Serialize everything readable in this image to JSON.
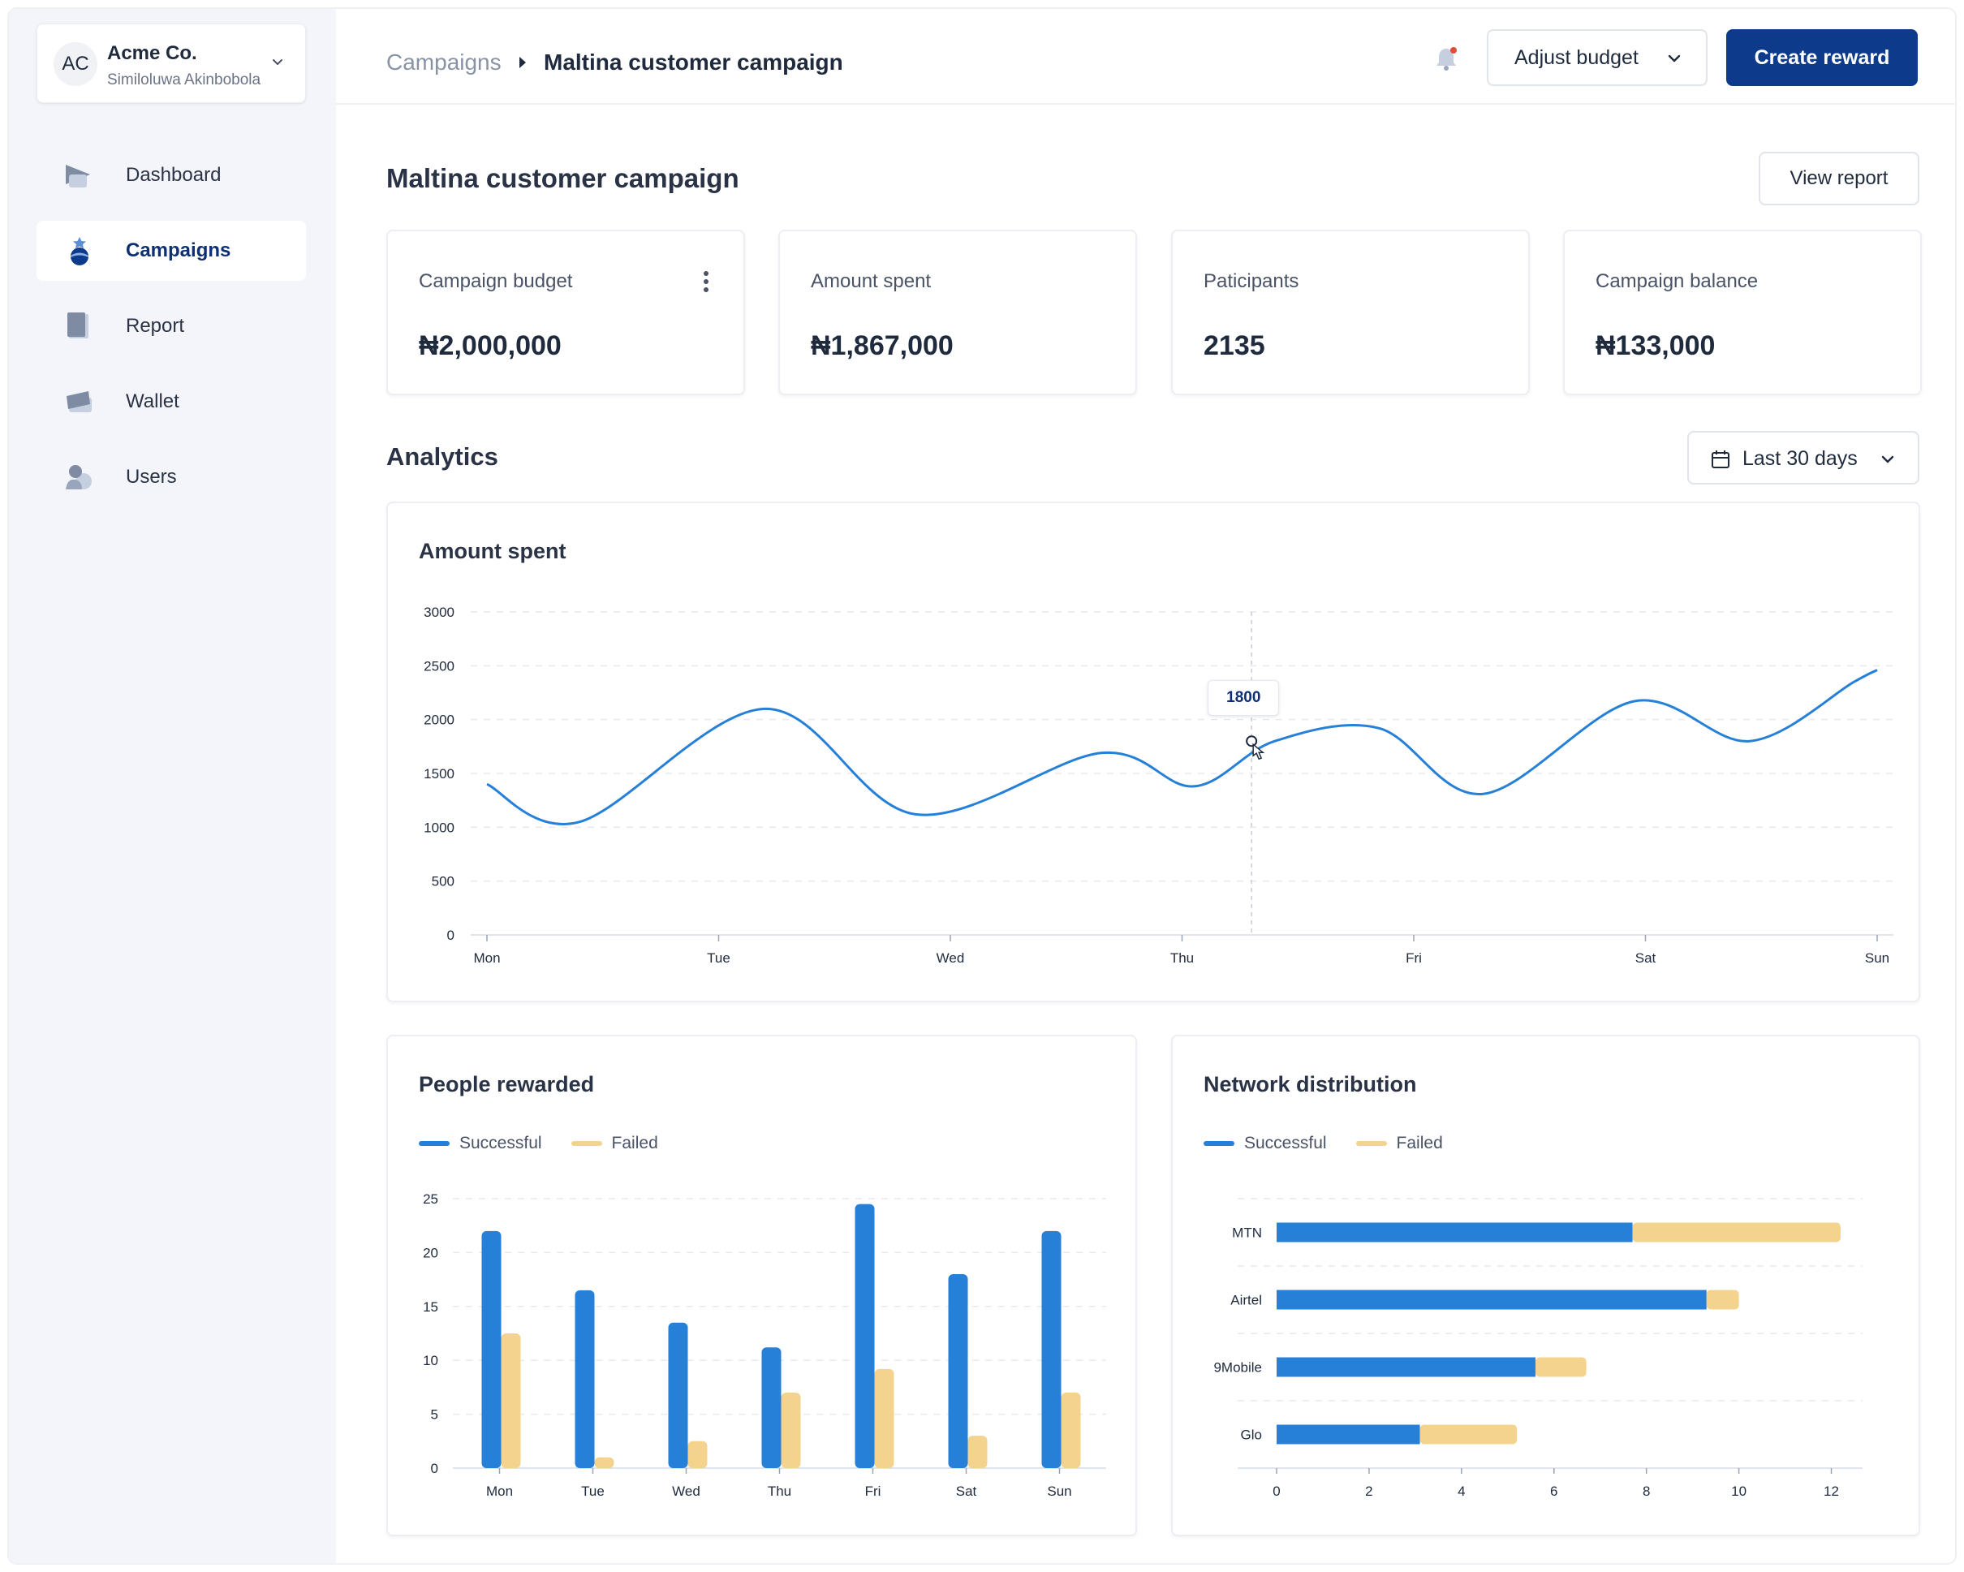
{
  "org": {
    "initials": "AC",
    "name": "Acme Co.",
    "user": "Similoluwa Akinbobola"
  },
  "nav": [
    {
      "label": "Dashboard",
      "icon": "dashboard-icon",
      "active": false
    },
    {
      "label": "Campaigns",
      "icon": "campaigns-icon",
      "active": true
    },
    {
      "label": "Report",
      "icon": "report-icon",
      "active": false
    },
    {
      "label": "Wallet",
      "icon": "wallet-icon",
      "active": false
    },
    {
      "label": "Users",
      "icon": "users-icon",
      "active": false
    }
  ],
  "header": {
    "breadcrumb_root": "Campaigns",
    "breadcrumb_current": "Maltina customer campaign",
    "adjust_budget_label": "Adjust budget",
    "create_reward_label": "Create reward",
    "notification_dot": true
  },
  "page": {
    "title": "Maltina customer campaign",
    "view_report_label": "View report",
    "analytics_title": "Analytics",
    "date_range": "Last 30 days"
  },
  "stats": [
    {
      "label": "Campaign budget",
      "value": "₦2,000,000"
    },
    {
      "label": "Amount spent",
      "value": "₦1,867,000"
    },
    {
      "label": "Paticipants",
      "value": "2135"
    },
    {
      "label": "Campaign balance",
      "value": "₦133,000"
    }
  ],
  "colors": {
    "accent": "#0d3a8a",
    "successful": "#2680d8",
    "failed": "#f3d38e",
    "line": "#2680d8"
  },
  "chart_data": [
    {
      "type": "line",
      "title": "Amount spent",
      "categories": [
        "Mon",
        "Tue",
        "Wed",
        "Thu",
        "Fri",
        "Sat",
        "Sun"
      ],
      "x": [
        0,
        0.4,
        1.2,
        1.85,
        2.65,
        3.05,
        3.4,
        3.85,
        4.3,
        4.95,
        5.45,
        5.9,
        6.0
      ],
      "values": [
        1400,
        1050,
        2100,
        1120,
        1690,
        1380,
        1800,
        1920,
        1310,
        2170,
        1800,
        2350,
        2460
      ],
      "ylim": [
        0,
        3000
      ],
      "yticks": [
        0,
        500,
        1000,
        1500,
        2000,
        2500,
        3000
      ],
      "tooltip": {
        "x": 3.3,
        "value": "1800"
      },
      "grid": true
    },
    {
      "type": "bar",
      "title": "People rewarded",
      "categories": [
        "Mon",
        "Tue",
        "Wed",
        "Thu",
        "Fri",
        "Sat",
        "Sun"
      ],
      "series": [
        {
          "name": "Successful",
          "values": [
            22,
            16.5,
            13.5,
            11.2,
            24.5,
            18,
            22
          ]
        },
        {
          "name": "Failed",
          "values": [
            12.5,
            1,
            2.5,
            7,
            9.2,
            3,
            7
          ]
        }
      ],
      "ylim": [
        0,
        25
      ],
      "yticks": [
        0,
        5,
        10,
        15,
        20,
        25
      ],
      "legend": "top-left"
    },
    {
      "type": "bar",
      "orientation": "horizontal",
      "stacked": true,
      "title": "Network distribution",
      "categories": [
        "MTN",
        "Airtel",
        "9Mobile",
        "Glo"
      ],
      "series": [
        {
          "name": "Successful",
          "values": [
            7.7,
            9.3,
            5.6,
            3.1
          ]
        },
        {
          "name": "Failed",
          "values": [
            4.5,
            0.7,
            1.1,
            2.1
          ]
        }
      ],
      "xlim": [
        0,
        12.5
      ],
      "xticks": [
        0,
        2,
        4,
        6,
        8,
        10,
        12
      ],
      "legend": "top-left"
    }
  ]
}
